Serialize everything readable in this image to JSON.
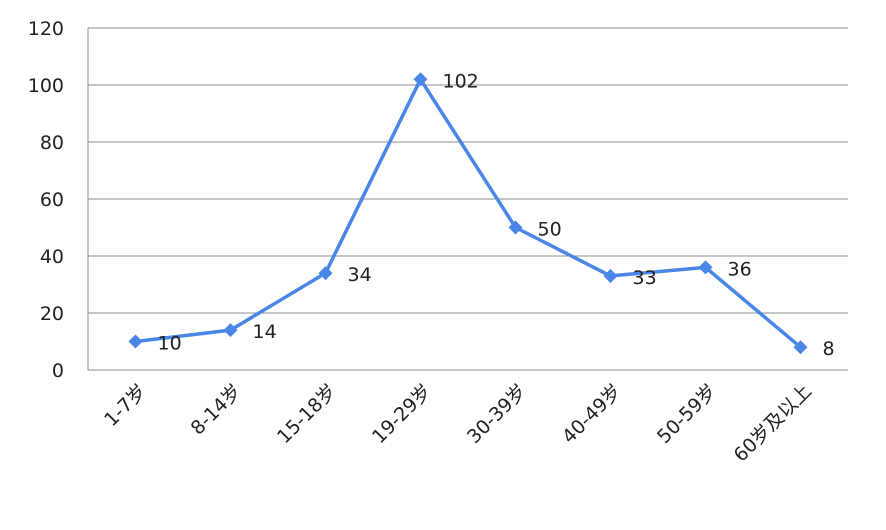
{
  "chart_data": {
    "type": "line",
    "categories": [
      "1-7岁",
      "8-14岁",
      "15-18岁",
      "19-29岁",
      "30-39岁",
      "40-49岁",
      "50-59岁",
      "60岁及以上"
    ],
    "series": [
      {
        "values": [
          10,
          14,
          34,
          102,
          50,
          33,
          36,
          8
        ]
      }
    ],
    "data_labels": [
      "10",
      "14",
      "34",
      "102",
      "50",
      "33",
      "36",
      "8"
    ],
    "yticks": [
      "0",
      "20",
      "40",
      "60",
      "80",
      "100",
      "120"
    ],
    "ylim": [
      0,
      120
    ],
    "grid": "horizontal",
    "marker": "diamond",
    "line_color": "#4a86e8",
    "title": "",
    "xlabel": "",
    "ylabel": ""
  }
}
